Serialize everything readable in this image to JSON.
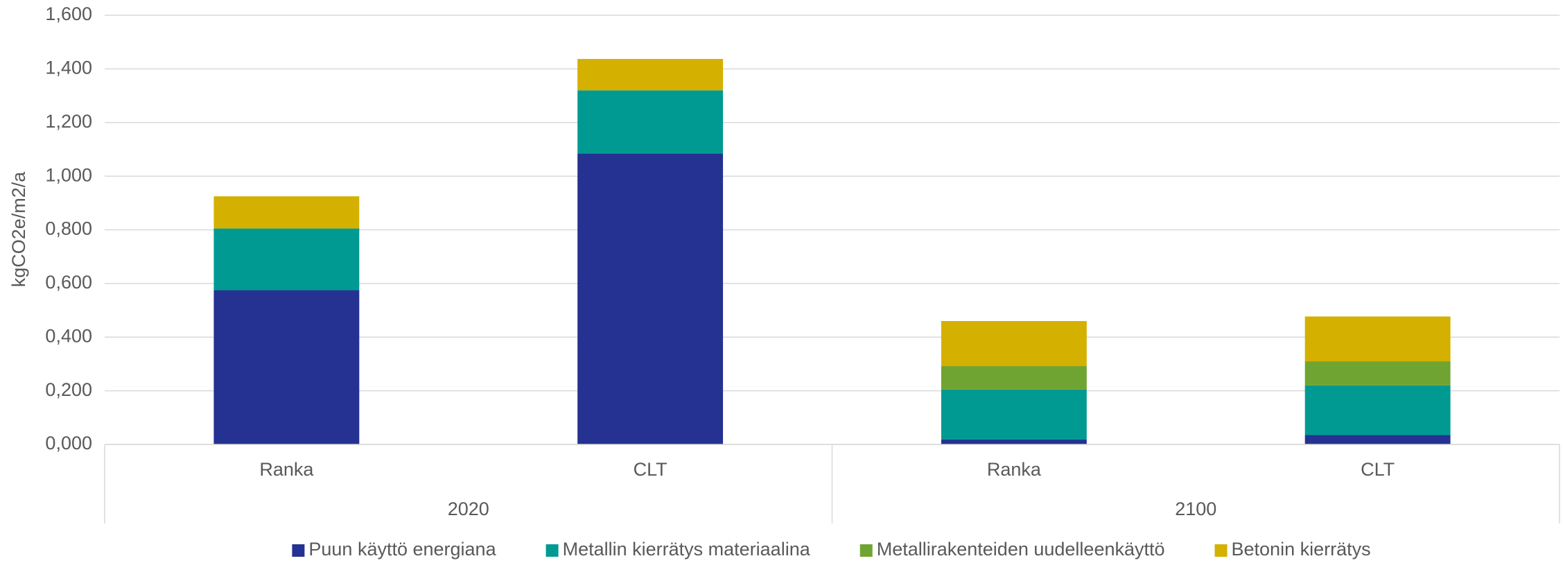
{
  "chart_data": {
    "type": "stacked_bar",
    "y_label": "kgCO2e/m2/a",
    "categories": [
      "Ranka",
      "CLT",
      "Ranka",
      "CLT"
    ],
    "groups": [
      "2020",
      "2100"
    ],
    "series": [
      {
        "name": "Puun käyttö energiana",
        "color": "#253291",
        "values": [
          0.575,
          1.085,
          0.018,
          0.035
        ]
      },
      {
        "name": "Metallin kierrätys materiaalina",
        "color": "#009a93",
        "values": [
          0.23,
          0.235,
          0.187,
          0.185
        ]
      },
      {
        "name": "Metallirakenteiden uudelleenkäyttö",
        "color": "#70a432",
        "values": [
          0,
          0,
          0.087,
          0.09
        ]
      },
      {
        "name": "Betonin kierrätys",
        "color": "#d4b000",
        "values": [
          0.12,
          0.117,
          0.168,
          0.167
        ]
      }
    ],
    "ylim": [
      0,
      1.6
    ],
    "yticks": [
      {
        "value": 0,
        "label": "0,000"
      },
      {
        "value": 0.2,
        "label": "0,200"
      },
      {
        "value": 0.4,
        "label": "0,400"
      },
      {
        "value": 0.6,
        "label": "0,600"
      },
      {
        "value": 0.8,
        "label": "0,800"
      },
      {
        "value": 1.0,
        "label": "1,000"
      },
      {
        "value": 1.2,
        "label": "1,200"
      },
      {
        "value": 1.4,
        "label": "1,400"
      },
      {
        "value": 1.6,
        "label": "1,600"
      }
    ],
    "grid": true,
    "legend": "bottom"
  }
}
